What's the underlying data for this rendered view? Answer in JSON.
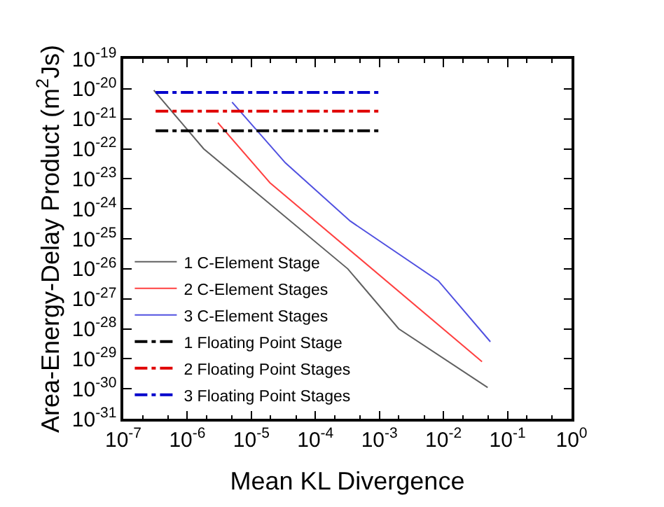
{
  "chart_data": {
    "type": "line",
    "xlabel": "Mean KL Divergence",
    "ylabel": "Area-Energy-Delay Product (m$^{2}$Js)",
    "log": "xy",
    "legend": "bottom left",
    "marker": "none",
    "xlim": [
      1e-07,
      1
    ],
    "ylim": [
      1e-31,
      1e-19
    ],
    "xticks": [
      {
        "value": 1e-07,
        "label": "10$^{-7}$"
      },
      {
        "value": 1e-06,
        "label": "10$^{-6}$"
      },
      {
        "value": 1e-05,
        "label": "10$^{-5}$"
      },
      {
        "value": 0.0001,
        "label": "10$^{-4}$"
      },
      {
        "value": 0.001,
        "label": "10$^{-3}$"
      },
      {
        "value": 0.01,
        "label": "10$^{-2}$"
      },
      {
        "value": 0.1,
        "label": "10$^{-1}$"
      },
      {
        "value": 1,
        "label": "10$^{0}$"
      }
    ],
    "yticks": [
      {
        "value": 1e-31,
        "label": "10$^{-31}$"
      },
      {
        "value": 1e-30,
        "label": "10$^{-30}$"
      },
      {
        "value": 1e-29,
        "label": "10$^{-29}$"
      },
      {
        "value": 1e-28,
        "label": "10$^{-28}$"
      },
      {
        "value": 1e-27,
        "label": "10$^{-27}$"
      },
      {
        "value": 1e-26,
        "label": "10$^{-26}$"
      },
      {
        "value": 1e-25,
        "label": "10$^{-25}$"
      },
      {
        "value": 1e-24,
        "label": "10$^{-24}$"
      },
      {
        "value": 1e-23,
        "label": "10$^{-23}$"
      },
      {
        "value": 1e-22,
        "label": "10$^{-22}$"
      },
      {
        "value": 1e-21,
        "label": "10$^{-21}$"
      },
      {
        "value": 1e-20,
        "label": "10$^{-20}$"
      },
      {
        "value": 1e-19,
        "label": "10$^{-19}$"
      }
    ],
    "series": [
      {
        "name": "1 C-Element Stage",
        "color": "#606060",
        "line_style": "solid",
        "x": [
          3e-07,
          1.8e-06,
          0.00032,
          0.002,
          0.049
        ],
        "values": [
          9e-21,
          1e-22,
          1e-26,
          1e-28,
          1.1e-30
        ]
      },
      {
        "name": "2 C-Element Stages",
        "color": "#ff4040",
        "line_style": "solid",
        "x": [
          3e-06,
          1.95e-05,
          0.04
        ],
        "values": [
          7.4e-22,
          7.4e-24,
          8e-30
        ]
      },
      {
        "name": "3 C-Element Stages",
        "color": "#5050e0",
        "line_style": "solid",
        "x": [
          5e-06,
          3.4e-05,
          0.00035,
          0.0083,
          0.054
        ],
        "values": [
          3.6e-21,
          3.4e-23,
          3.9e-25,
          4e-27,
          3.7e-29
        ]
      },
      {
        "name": "1 Floating Point Stage",
        "color": "#000000",
        "line_style": "dashdot",
        "x": [
          3.2e-07,
          0.001
        ],
        "values": [
          4e-22,
          4e-22
        ]
      },
      {
        "name": "2 Floating Point Stages",
        "color": "#e00000",
        "line_style": "dashdot",
        "x": [
          3.2e-07,
          0.001
        ],
        "values": [
          1.8e-21,
          1.8e-21
        ]
      },
      {
        "name": "3 Floating Point Stages",
        "color": "#0000cc",
        "line_style": "dashdot",
        "x": [
          3.2e-07,
          0.001
        ],
        "values": [
          7.6e-21,
          7.6e-21
        ]
      }
    ]
  }
}
